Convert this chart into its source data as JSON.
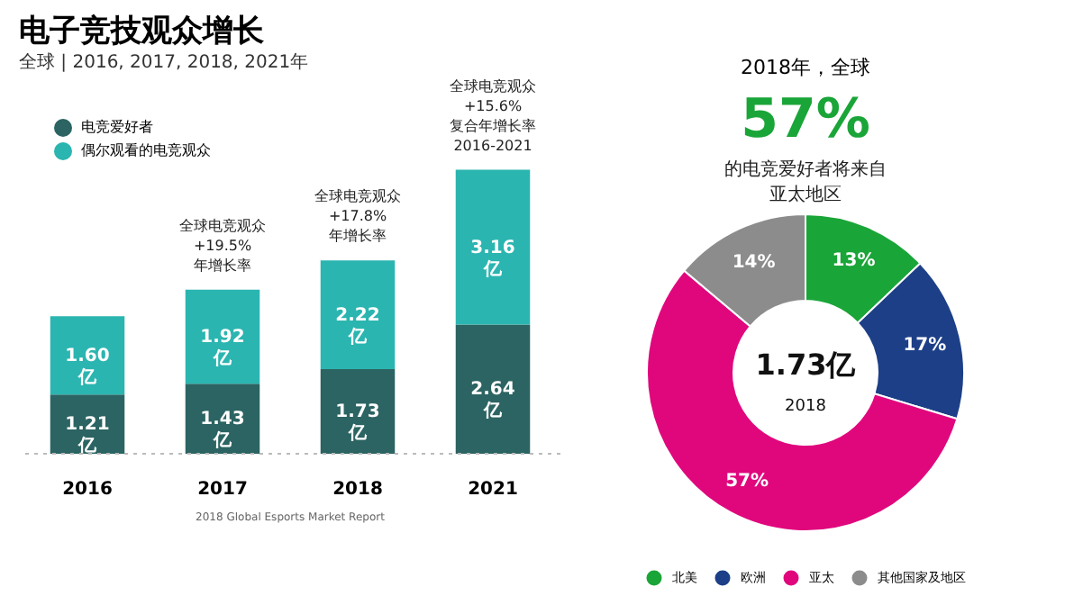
{
  "chart_data": [
    {
      "type": "bar",
      "title": "电子竞技观众增长",
      "subtitle": "全球 | 2016, 2017, 2018, 2021年",
      "categories": [
        "2016",
        "2017",
        "2018",
        "2021"
      ],
      "stacked": true,
      "tick_labels": "x",
      "grid": false,
      "legend": "top left",
      "series": [
        {
          "name": "电竞爱好者",
          "color": "#2b6462",
          "values": [
            1.21,
            1.43,
            1.73,
            2.64
          ],
          "value_labels": [
            "1.21\n亿",
            "1.43\n亿",
            "1.73\n亿",
            "2.64\n亿"
          ]
        },
        {
          "name": "偶尔观看的电竞观众",
          "color": "#2bb5b0",
          "values": [
            1.6,
            1.92,
            2.22,
            3.16
          ],
          "value_labels": [
            "1.60\n亿",
            "1.92\n亿",
            "2.22\n亿",
            "3.16\n亿"
          ]
        }
      ],
      "annotations": [
        {
          "text": "全球电竞观众\n+19.5%\n年增长率",
          "x": "2017",
          "y": 3.35
        },
        {
          "text": "全球电竞观众\n+17.8%\n年增长率",
          "x": "2018",
          "y": 3.95
        },
        {
          "text": "全球电竞观众\n+15.6%\n复合年增长率\n2016-2021",
          "x": "2021",
          "y": 5.8
        },
        "2018 Global Esports Market Report"
      ]
    },
    {
      "type": "donut",
      "title": "2018年，全球",
      "categories": [
        "北美",
        "欧洲",
        "亚太",
        "其他国家及地区"
      ],
      "values": [
        13,
        17,
        57,
        14
      ],
      "colors": [
        "#1aa538",
        "#1c3f87",
        "#e0077d",
        "#8c8c8c"
      ],
      "value_labels": [
        "13%",
        "17%",
        "57%",
        "14%"
      ],
      "legend": "bottom",
      "annotations": [
        "57%",
        "的电竞爱好者将来自",
        "亚太地区",
        "1.73亿",
        "2018"
      ]
    }
  ]
}
